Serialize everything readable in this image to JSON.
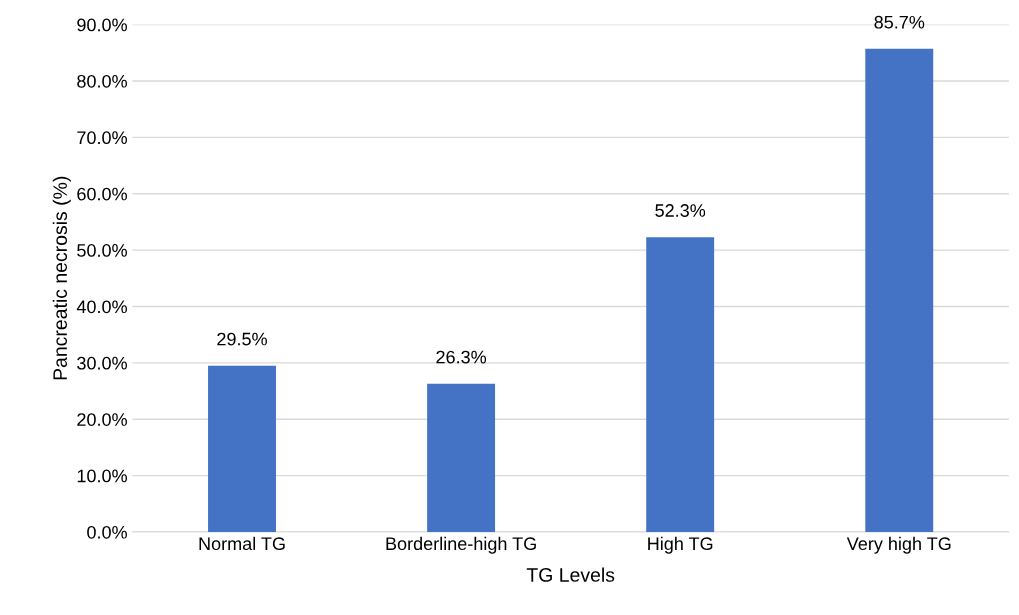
{
  "chart_data": {
    "type": "bar",
    "xlabel": "TG Levels",
    "ylabel": "Pancreatic necrosis (%)",
    "categories": [
      "Normal TG",
      "Borderline-high TG",
      "High TG",
      "Very high TG"
    ],
    "values": [
      29.5,
      26.3,
      52.3,
      85.7
    ],
    "value_labels": [
      "29.5%",
      "26.3%",
      "52.3%",
      "85.7%"
    ],
    "color": "#4472c4",
    "ylim": [
      0,
      90
    ],
    "yticks": [
      {
        "value": 0,
        "label": "0.0%"
      },
      {
        "value": 10,
        "label": "10.0%"
      },
      {
        "value": 20,
        "label": "20.0%"
      },
      {
        "value": 30,
        "label": "30.0%"
      },
      {
        "value": 40,
        "label": "40.0%"
      },
      {
        "value": 50,
        "label": "50.0%"
      },
      {
        "value": 60,
        "label": "60.0%"
      },
      {
        "value": 70,
        "label": "70.0%"
      },
      {
        "value": 80,
        "label": "80.0%"
      },
      {
        "value": 90,
        "label": "90.0%"
      }
    ],
    "grid": "y",
    "legend": false
  }
}
